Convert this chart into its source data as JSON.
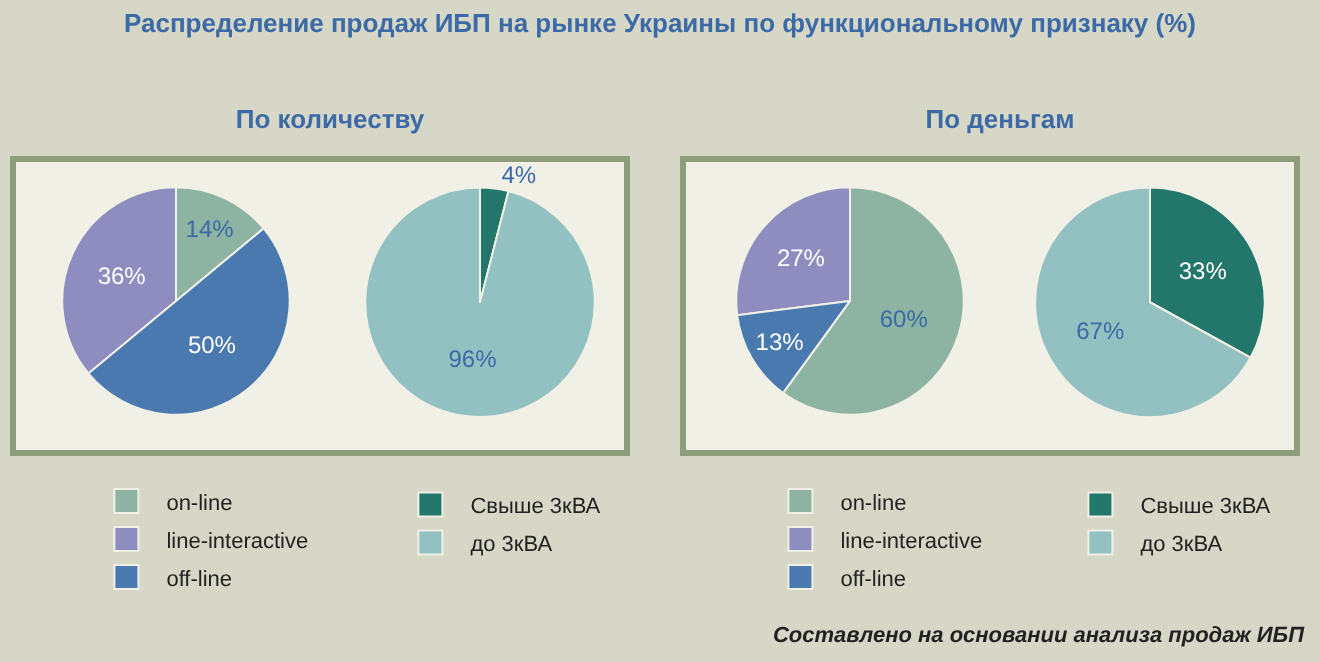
{
  "chart_data": [
    {
      "type": "pie",
      "title": "Распределение продаж ИБП на рынке Украины по функциональному признаку (%)",
      "subtitle": "По количеству",
      "categories": [
        "on-line",
        "line-interactive",
        "off-line"
      ],
      "values": [
        14,
        36,
        50
      ],
      "colors": [
        "#8db3a2",
        "#8f8cc0",
        "#4a79b0"
      ],
      "value_labels": [
        "14%",
        "36%",
        "50%"
      ],
      "legend": "bottom"
    },
    {
      "type": "pie",
      "categories": [
        "Свыше 3кВА",
        "до 3кВА"
      ],
      "values": [
        4,
        96
      ],
      "colors": [
        "#23766a",
        "#93c0c0"
      ],
      "value_labels": [
        "4%",
        "96%"
      ],
      "legend": "bottom"
    },
    {
      "type": "pie",
      "subtitle": "По деньгам",
      "categories": [
        "on-line",
        "line-interactive",
        "off-line"
      ],
      "values": [
        60,
        27,
        13
      ],
      "colors": [
        "#8db3a2",
        "#8f8cc0",
        "#4a79b0"
      ],
      "value_labels": [
        "60%",
        "27%",
        "13%"
      ],
      "legend": "bottom"
    },
    {
      "type": "pie",
      "categories": [
        "Свыше 3кВА",
        "до 3кВА"
      ],
      "values": [
        33,
        67
      ],
      "colors": [
        "#23766a",
        "#93c0c0"
      ],
      "value_labels": [
        "33%",
        "67%"
      ],
      "legend": "bottom",
      "annotations": [
        "Составлено на основании анализа продаж ИБП"
      ]
    }
  ]
}
